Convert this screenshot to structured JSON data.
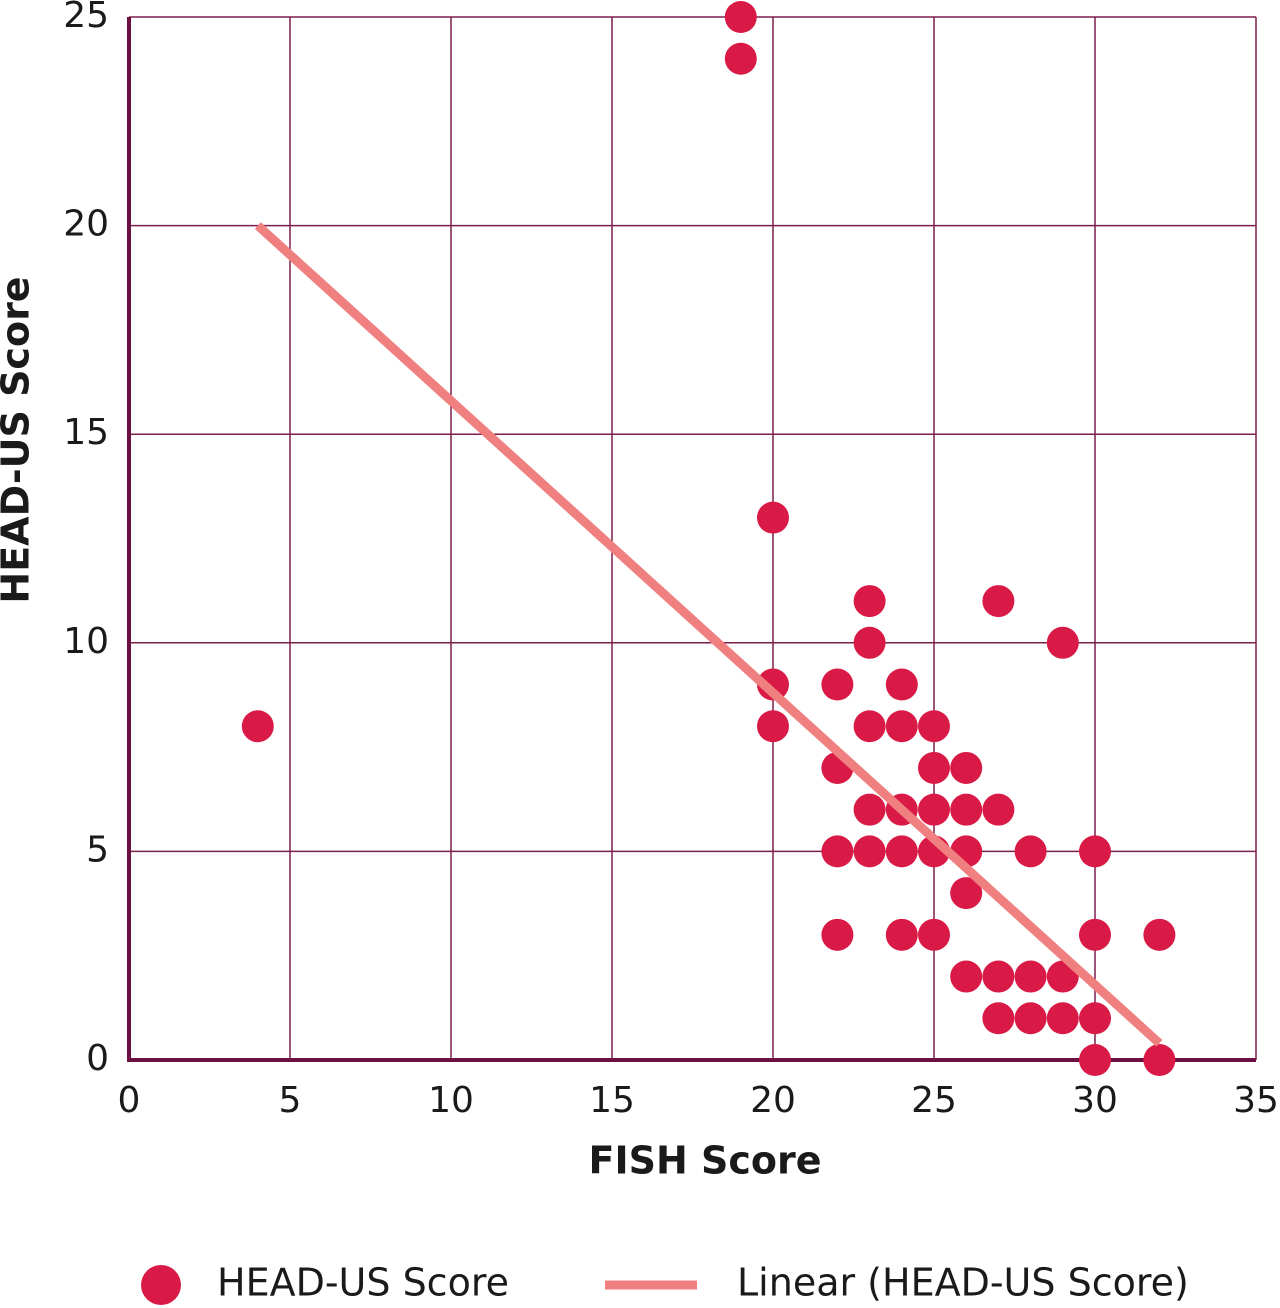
{
  "chart_data": {
    "type": "scatter",
    "x_label": "FISH Score",
    "y_label": "HEAD-US Score",
    "xlim": [
      0,
      35
    ],
    "xticks": [
      0,
      5,
      10,
      15,
      20,
      25,
      30,
      35
    ],
    "ylim": [
      0,
      25
    ],
    "yticks": [
      0,
      5,
      10,
      15,
      20,
      25
    ],
    "grid": true,
    "legend": "bottom",
    "series": [
      {
        "name": "HEAD-US Score",
        "color": "#d91a46",
        "mark": "dot",
        "x": [
          19,
          19,
          20,
          4,
          20,
          20,
          22,
          22,
          22,
          22,
          23,
          23,
          23,
          23,
          23,
          24,
          24,
          24,
          24,
          24,
          25,
          25,
          25,
          25,
          25,
          26,
          26,
          26,
          26,
          26,
          27,
          27,
          27,
          27,
          28,
          28,
          28,
          29,
          29,
          29,
          30,
          30,
          30,
          30,
          32,
          32
        ],
        "values": [
          25,
          24,
          13,
          8,
          9,
          8,
          9,
          7,
          5,
          3,
          11,
          10,
          8,
          6,
          5,
          9,
          8,
          6,
          5,
          3,
          8,
          7,
          6,
          5,
          3,
          7,
          6,
          5,
          4,
          2,
          11,
          6,
          2,
          1,
          5,
          2,
          1,
          10,
          2,
          1,
          5,
          3,
          1,
          0,
          3,
          0
        ]
      },
      {
        "name": "Linear (HEAD-US Score)",
        "color": "#f08080",
        "mark": "line",
        "x": [
          4,
          32
        ],
        "values": [
          20,
          0.4
        ]
      }
    ]
  }
}
